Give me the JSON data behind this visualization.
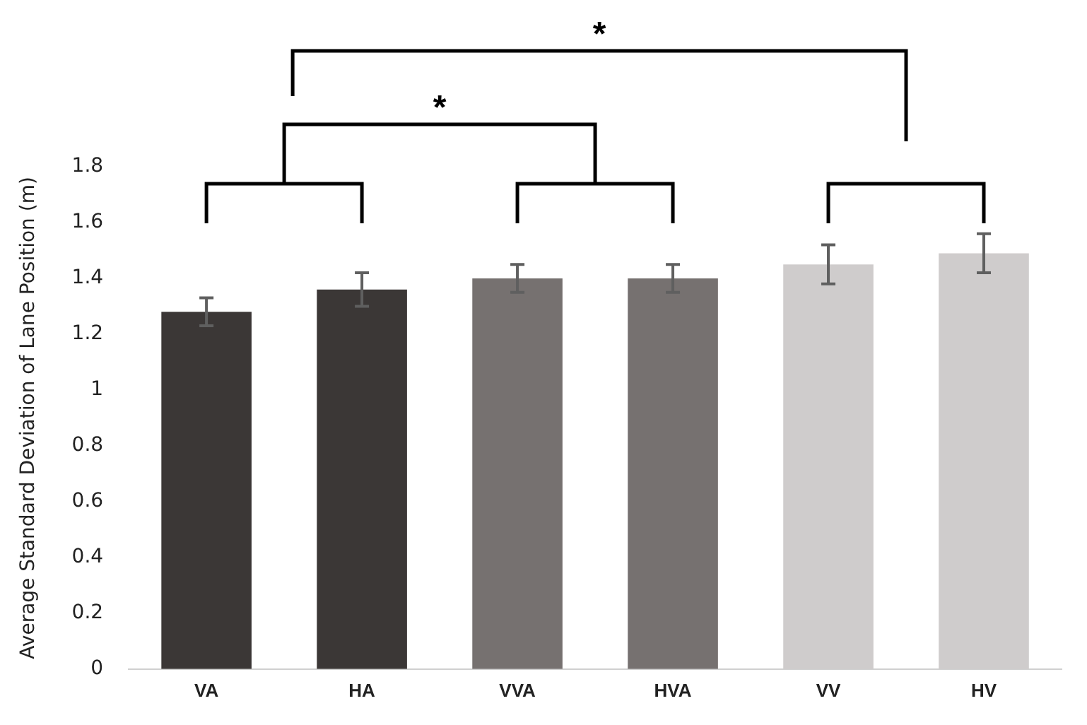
{
  "chart_data": {
    "type": "bar",
    "ylabel": "Average Standard Deviation of Lane Position (m)",
    "categories": [
      "VA",
      "HA",
      "VVA",
      "HVA",
      "VV",
      "HV"
    ],
    "values": [
      1.28,
      1.36,
      1.4,
      1.4,
      1.45,
      1.49
    ],
    "colors": [
      "#3b3736",
      "#3b3736",
      "#767170",
      "#767170",
      "#cfcccc",
      "#cfcccc"
    ],
    "errors": [
      0.05,
      0.06,
      0.05,
      0.05,
      0.07,
      0.07
    ],
    "ylim": [
      0,
      1.8
    ],
    "yticks": [
      0,
      0.2,
      0.4,
      0.6,
      0.8,
      1,
      1.2,
      1.4,
      1.6,
      1.8
    ],
    "annotations": [
      "*",
      "*"
    ],
    "grid": false,
    "legend": false
  }
}
